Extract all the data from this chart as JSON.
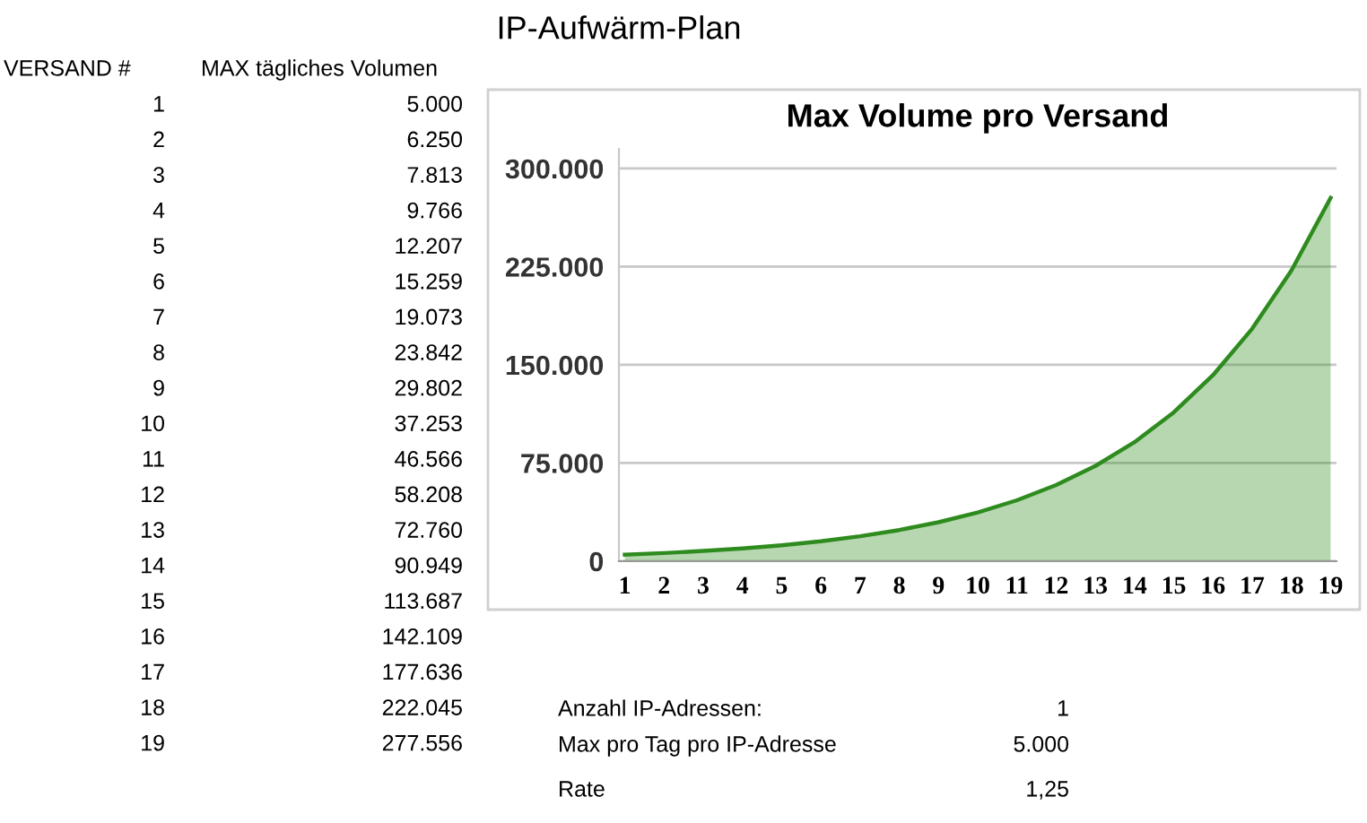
{
  "chart_data": {
    "type": "area",
    "title": "IP-Aufwärm-Plan",
    "subtitle": "Max Volume pro Versand",
    "categories": [
      "1",
      "2",
      "3",
      "4",
      "5",
      "6",
      "7",
      "8",
      "9",
      "10",
      "11",
      "12",
      "13",
      "14",
      "15",
      "16",
      "17",
      "18",
      "19"
    ],
    "series": [
      {
        "color": "#2e8b1e",
        "values": [
          5000,
          6250,
          7813,
          9766,
          12207,
          15259,
          19073,
          23842,
          29802,
          37253,
          46566,
          58208,
          72760,
          90949,
          113687,
          142109,
          177636,
          222045,
          277556
        ]
      }
    ],
    "ylim": [
      0,
      315000
    ],
    "yticks": [
      0,
      {
        "value": 75000,
        "label": "75.000"
      },
      {
        "value": 150000,
        "label": "150.000"
      },
      {
        "value": 225000,
        "label": "225.000"
      },
      {
        "value": 300000,
        "label": "300.000"
      }
    ],
    "grid": "y",
    "legend": false,
    "annotations": [
      "VERSAND #",
      "MAX tägliches Volumen",
      "5.000",
      "6.250",
      "7.813",
      "9.766",
      "12.207",
      "15.259",
      "19.073",
      "23.842",
      "29.802",
      "37.253",
      "46.566",
      "58.208",
      "72.760",
      "90.949",
      "113.687",
      "142.109",
      "177.636",
      "222.045",
      "277.556",
      "Anzahl IP-Adressen:",
      "1",
      "Max pro Tag pro IP-Adresse",
      "5.000",
      "Rate",
      "1,25"
    ]
  }
}
